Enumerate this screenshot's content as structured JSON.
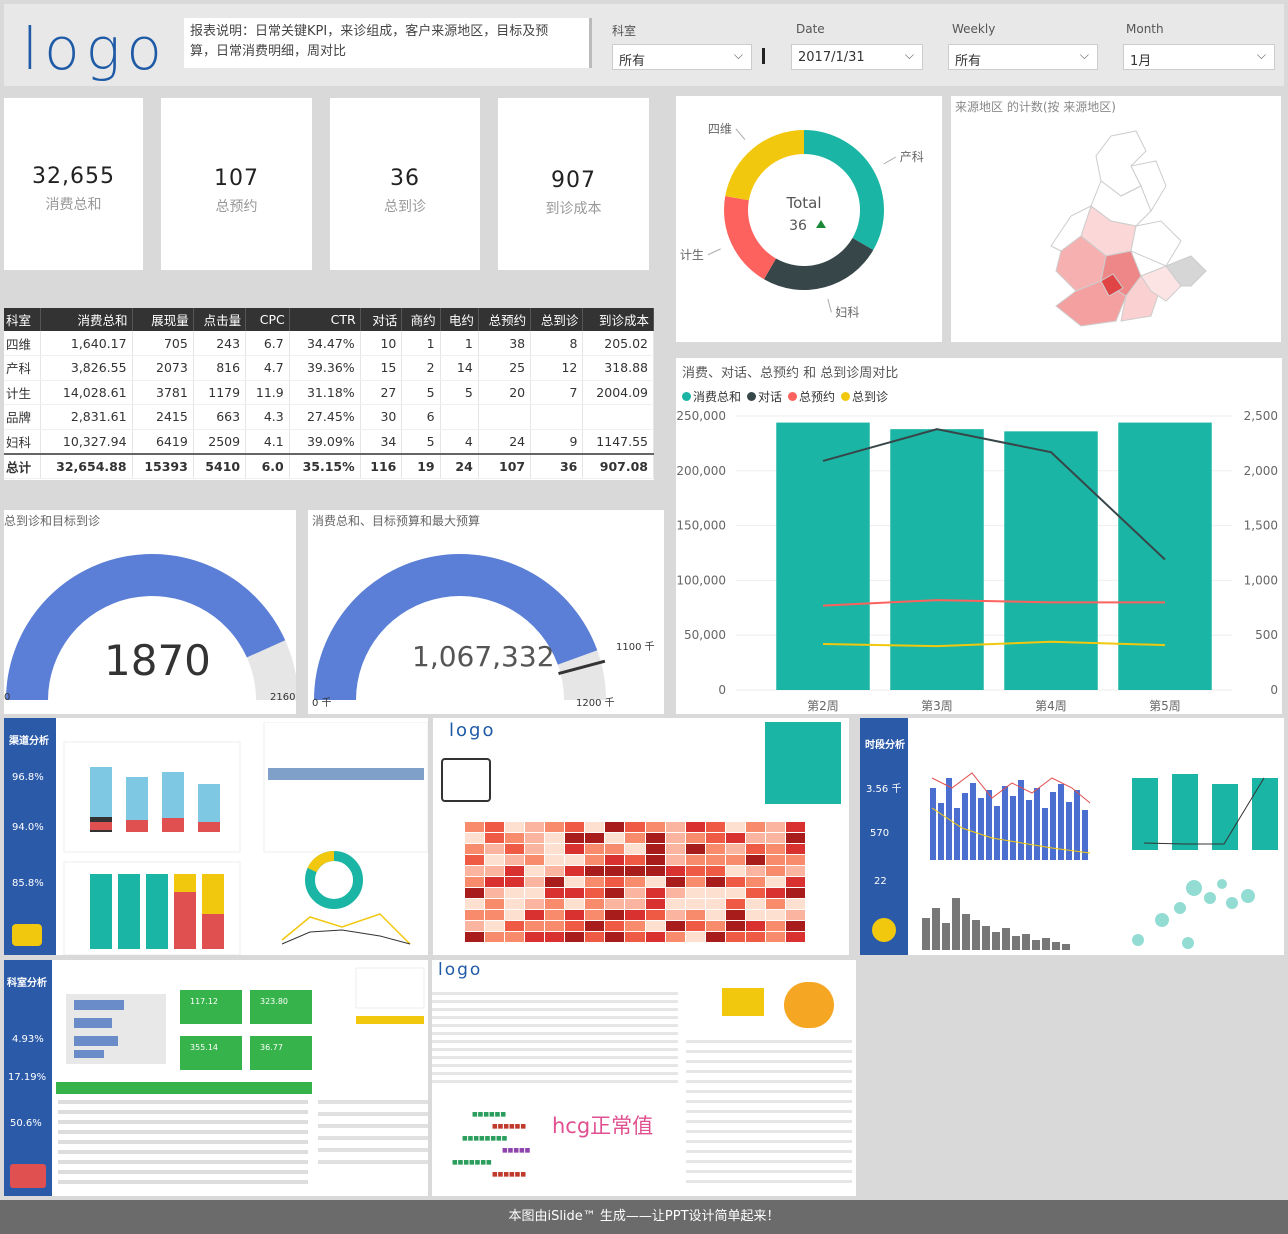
{
  "header": {
    "logo_text": "logo",
    "description": "报表说明：日常关键KPI，来诊组成，客户来源地区，目标及预算，日常消费明细，周对比"
  },
  "slicers": [
    {
      "label": "科室",
      "value": "所有"
    },
    {
      "label": "Date",
      "value": "2017/1/31"
    },
    {
      "label": "Weekly",
      "value": "所有"
    },
    {
      "label": "Month",
      "value": "1月"
    }
  ],
  "kpis": [
    {
      "value": "32,655",
      "label": "消费总和"
    },
    {
      "value": "107",
      "label": "总预约"
    },
    {
      "value": "36",
      "label": "总到诊"
    },
    {
      "value": "907",
      "label": "到诊成本"
    }
  ],
  "donut": {
    "center_label": "Total",
    "center_value": "36",
    "segments": [
      {
        "name": "产科",
        "value": 12,
        "color": "#1ab5a4"
      },
      {
        "name": "妇科",
        "value": 9,
        "color": "#374649"
      },
      {
        "name": "计生",
        "value": 7,
        "color": "#fd625e"
      },
      {
        "name": "四维",
        "value": 8,
        "color": "#f2c80f"
      }
    ]
  },
  "map": {
    "title": "来源地区 的计数(按 来源地区)"
  },
  "table": {
    "headers": [
      "科室",
      "消费总和",
      "展现量",
      "点击量",
      "CPC",
      "CTR",
      "对话",
      "商约",
      "电约",
      "总预约",
      "总到诊",
      "到诊成本"
    ],
    "rows": [
      [
        "四维",
        "1,640.17",
        "705",
        "243",
        "6.7",
        "34.47%",
        "10",
        "1",
        "1",
        "38",
        "8",
        "205.02"
      ],
      [
        "产科",
        "3,826.55",
        "2073",
        "816",
        "4.7",
        "39.36%",
        "15",
        "2",
        "14",
        "25",
        "12",
        "318.88"
      ],
      [
        "计生",
        "14,028.61",
        "3781",
        "1179",
        "11.9",
        "31.18%",
        "27",
        "5",
        "5",
        "20",
        "7",
        "2004.09"
      ],
      [
        "品牌",
        "2,831.61",
        "2415",
        "663",
        "4.3",
        "27.45%",
        "30",
        "6",
        "",
        "",
        "",
        ""
      ],
      [
        "妇科",
        "10,327.94",
        "6419",
        "2509",
        "4.1",
        "39.09%",
        "34",
        "5",
        "4",
        "24",
        "9",
        "1147.55"
      ]
    ],
    "total": [
      "总计",
      "32,654.88",
      "15393",
      "5410",
      "6.0",
      "35.15%",
      "116",
      "19",
      "24",
      "107",
      "36",
      "907.08"
    ]
  },
  "gauge1": {
    "title": "总到诊和目标到诊",
    "value": 1870,
    "display": "1870",
    "min_label": "0",
    "max_label": "2160",
    "max": 2160,
    "color": "#5b7fd6"
  },
  "gauge2": {
    "title": "消费总和、目标预算和最大预算",
    "value": 1067332,
    "display": "1,067,332",
    "min_label": "0 千",
    "max_label": "1200 千",
    "target_label": "1100 千",
    "max": 1200000,
    "target": 1100000,
    "color": "#5b7fd6"
  },
  "combo": {
    "title": "消费、对话、总预约 和 总到诊周对比",
    "legend": [
      {
        "name": "消费总和",
        "color": "#1ab5a4"
      },
      {
        "name": "对话",
        "color": "#374649"
      },
      {
        "name": "总预约",
        "color": "#fd625e"
      },
      {
        "name": "总到诊",
        "color": "#f2c80f"
      }
    ],
    "left_ticks": [
      "250,000",
      "200,000",
      "150,000",
      "100,000",
      "50,000",
      "0"
    ],
    "right_ticks": [
      "2,500",
      "2,000",
      "1,500",
      "1,000",
      "500",
      "0"
    ]
  },
  "chart_data": {
    "type": "bar",
    "categories": [
      "第2周",
      "第3周",
      "第4周",
      "第5周"
    ],
    "series": [
      {
        "name": "消费总和",
        "axis": "left",
        "type": "bar",
        "values": [
          244000,
          238000,
          236000,
          244000
        ]
      },
      {
        "name": "对话",
        "axis": "right",
        "type": "line",
        "values": [
          2090,
          2380,
          2170,
          1190
        ]
      },
      {
        "name": "总预约",
        "axis": "right",
        "type": "line",
        "values": [
          770,
          820,
          800,
          800
        ]
      },
      {
        "name": "总到诊",
        "axis": "right",
        "type": "line",
        "values": [
          420,
          400,
          440,
          410
        ]
      }
    ],
    "ylim_left": [
      0,
      250000
    ],
    "ylim_right": [
      0,
      2500
    ],
    "title": "消费、对话、总预约 和 总到诊周对比"
  },
  "thumbs": {
    "t1_title": "渠道分析",
    "t1_kpis": [
      "96.8%",
      "94.0%",
      "85.8%"
    ],
    "t2_logo": "logo",
    "t3_title": "时段分析",
    "t3_kpis": [
      "3.56 千",
      "570",
      "22"
    ],
    "t4_title": "科室分析",
    "t4_kpis": [
      "4.93%",
      "17.19%",
      "50.6%"
    ],
    "t4_mini": [
      "117.12",
      "323.80",
      "355.14",
      "36.77"
    ],
    "t5_logo": "logo",
    "t5_word": "hcg正常值"
  },
  "footer": "本图由iSlide™ 生成——让PPT设计简单起来！"
}
